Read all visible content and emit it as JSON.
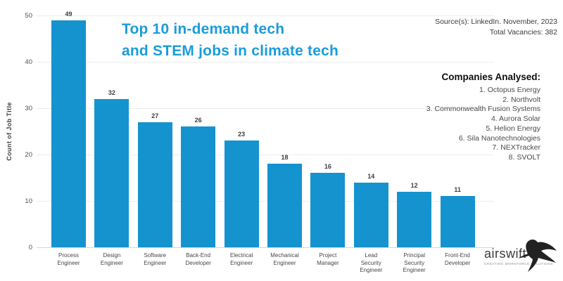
{
  "header": {
    "title_line1": "Top 10 in-demand tech",
    "title_line2": "and STEM jobs in climate tech",
    "source_line1": "Source(s): LinkedIn. November, 2023",
    "source_line2": "Total Vacancies: 382"
  },
  "companies": {
    "heading": "Companies Analysed:",
    "items": [
      "1. Octopus Energy",
      "2. Northvolt",
      "3. Commonwealth Fusion Systems",
      "4. Aurora Solar",
      "5. Helion Energy",
      "6. Sila Nanotechnologies",
      "7. NEXTracker",
      "8. SVOLT"
    ]
  },
  "chart_data": {
    "type": "bar",
    "title": "Top 10 in-demand tech and STEM jobs in climate tech",
    "categories": [
      "Process Engineer",
      "Design Engineer",
      "Software Engineer",
      "Back-End Developer",
      "Electrical Engineer",
      "Mechanical Engineer",
      "Project Manager",
      "Lead Security Engineer",
      "Principal Security Engineer",
      "Front-End Developer"
    ],
    "values": [
      49,
      32,
      27,
      26,
      23,
      18,
      16,
      14,
      12,
      11
    ],
    "xlabel": "",
    "ylabel": "Count of Job Title",
    "ylim": [
      0,
      50
    ],
    "yticks": [
      0,
      10,
      20,
      30,
      40,
      50
    ],
    "grid": true,
    "legend_position": "none",
    "value_labels": true,
    "bar_color": "#1493cf"
  },
  "logo": {
    "name": "airswift",
    "tagline": "CREATING WORKFORCE SOLUTIONS"
  },
  "colors": {
    "title_blue": "#1b9cd9",
    "bar_blue": "#1493cf",
    "value_label": "#3d3d3d",
    "axis_text": "#4f4f4f",
    "gridline": "#ededed",
    "baseline": "#d6d6d6",
    "companies_text": "#4a4a4a",
    "logo_dark": "#2a2a2a"
  }
}
